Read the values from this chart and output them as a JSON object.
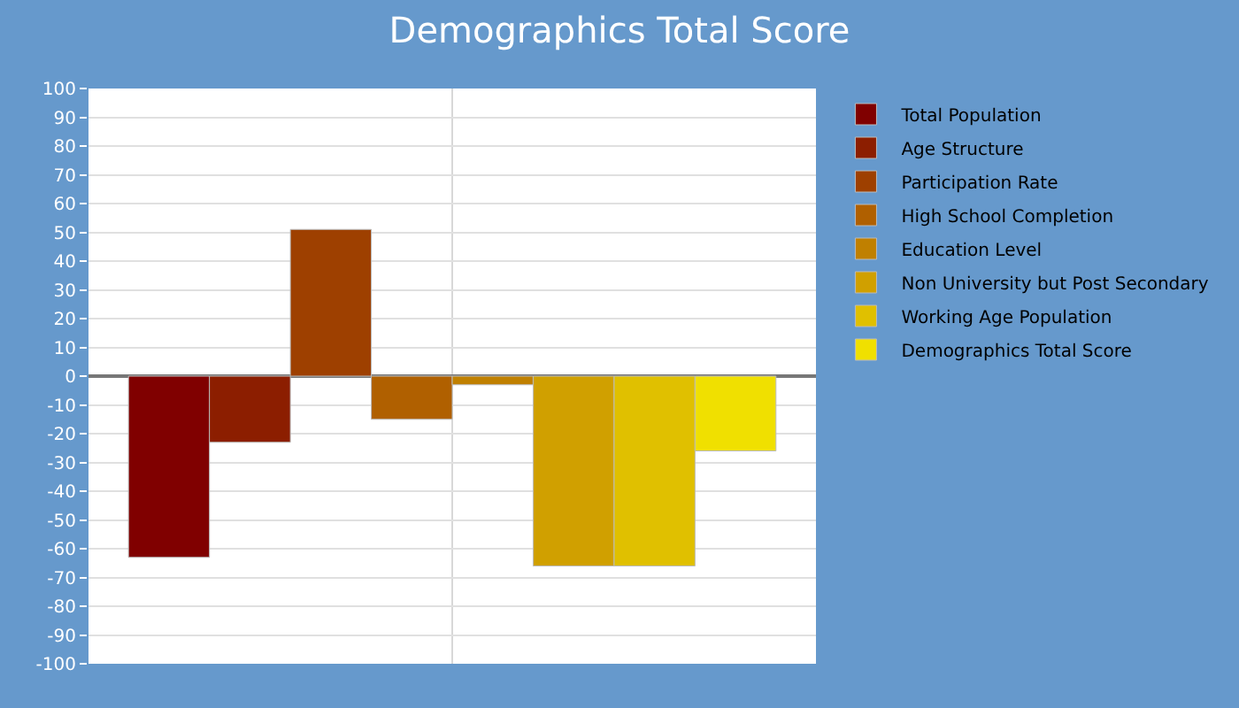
{
  "chart_data": {
    "type": "bar",
    "title": "Demographics Total Score",
    "categories": [
      null
    ],
    "series": [
      {
        "name": "Total Population",
        "color": "#800000",
        "values": [
          -63
        ]
      },
      {
        "name": "Age Structure",
        "color": "#8c1e00",
        "values": [
          -23
        ]
      },
      {
        "name": "Participation Rate",
        "color": "#9e4000",
        "values": [
          51
        ]
      },
      {
        "name": "High School Completion",
        "color": "#b06000",
        "values": [
          -15
        ]
      },
      {
        "name": "Education Level",
        "color": "#c08000",
        "values": [
          -3
        ]
      },
      {
        "name": "Non University but Post Secondary",
        "color": "#d0a000",
        "values": [
          -66
        ]
      },
      {
        "name": "Working Age Population",
        "color": "#e0c000",
        "values": [
          -66
        ]
      },
      {
        "name": "Demographics Total Score",
        "color": "#f0e000",
        "values": [
          -26
        ]
      }
    ],
    "ylim": [
      -100,
      100
    ],
    "yticks": [
      -100,
      -90,
      -80,
      -70,
      -60,
      -50,
      -40,
      -30,
      -20,
      -10,
      0,
      10,
      20,
      30,
      40,
      50,
      60,
      70,
      80,
      90,
      100
    ],
    "grid": true,
    "legend": "right"
  }
}
